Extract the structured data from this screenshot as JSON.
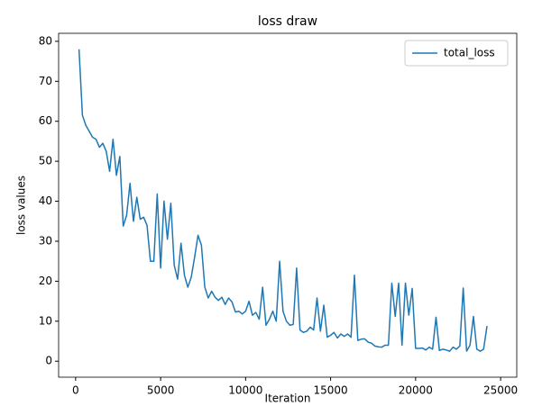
{
  "chart_data": {
    "type": "line",
    "title": "loss draw",
    "xlabel": "Iteration",
    "ylabel": "loss values",
    "x": [
      200,
      400,
      600,
      800,
      1000,
      1200,
      1400,
      1600,
      1800,
      2000,
      2200,
      2400,
      2600,
      2800,
      3000,
      3200,
      3400,
      3600,
      3800,
      4000,
      4200,
      4400,
      4600,
      4800,
      5000,
      5200,
      5400,
      5600,
      5800,
      6000,
      6200,
      6400,
      6600,
      6800,
      7000,
      7200,
      7400,
      7600,
      7800,
      8000,
      8200,
      8400,
      8600,
      8800,
      9000,
      9200,
      9400,
      9600,
      9800,
      10000,
      10200,
      10400,
      10600,
      10800,
      11000,
      11200,
      11400,
      11600,
      11800,
      12000,
      12200,
      12400,
      12600,
      12800,
      13000,
      13200,
      13400,
      13600,
      13800,
      14000,
      14200,
      14400,
      14600,
      14800,
      15000,
      15200,
      15400,
      15600,
      15800,
      16000,
      16200,
      16400,
      16600,
      16800,
      17000,
      17200,
      17400,
      17600,
      17800,
      18000,
      18200,
      18400,
      18600,
      18800,
      19000,
      19200,
      19400,
      19600,
      19800,
      20000,
      20200,
      20400,
      20600,
      20800,
      21000,
      21200,
      21400,
      21600,
      21800,
      22000,
      22200,
      22400,
      22600,
      22800,
      23000,
      23200,
      23400,
      23600,
      23800,
      24000,
      24200
    ],
    "series": [
      {
        "name": "total_loss",
        "color": "#1f77b4",
        "values": [
          78,
          61.5,
          59,
          57.5,
          56,
          55.5,
          53.5,
          54.5,
          52.5,
          47.5,
          55.5,
          46.5,
          51.2,
          33.8,
          36.5,
          44.5,
          35,
          41,
          35.5,
          36,
          34,
          25,
          25,
          41.8,
          23.3,
          40,
          30.5,
          39.5,
          24,
          20.5,
          29.5,
          21.5,
          18.5,
          21,
          26,
          31.5,
          29,
          18.5,
          15.8,
          17.5,
          16,
          15.2,
          16,
          14.2,
          15.8,
          14.8,
          12.3,
          12.5,
          11.8,
          12.5,
          15,
          11.5,
          12.2,
          10.5,
          18.5,
          9,
          10.5,
          12.5,
          10,
          25,
          12.5,
          10,
          9,
          9.2,
          23.3,
          7.8,
          7.2,
          7.5,
          8.5,
          7.8,
          15.8,
          7.5,
          14,
          6,
          6.5,
          7.2,
          5.8,
          6.8,
          6.2,
          6.8,
          6,
          21.5,
          5.2,
          5.5,
          5.6,
          4.8,
          4.5,
          3.8,
          3.6,
          3.5,
          4,
          4,
          19.5,
          11.2,
          19.5,
          4,
          19.5,
          11.5,
          18.2,
          3.2,
          3.2,
          3.3,
          2.8,
          3.5,
          3,
          11,
          2.7,
          3,
          2.8,
          2.5,
          3.5,
          3,
          3.8,
          18.3,
          2.5,
          4,
          11.2,
          3,
          2.5,
          3,
          8.8
        ]
      }
    ],
    "xlim": [
      -1000,
      25950
    ],
    "ylim": [
      -4,
      82
    ],
    "xticks": [
      0,
      5000,
      10000,
      15000,
      20000,
      25000
    ],
    "yticks": [
      0,
      10,
      20,
      30,
      40,
      50,
      60,
      70,
      80
    ],
    "legend": "upper right",
    "grid": false
  }
}
